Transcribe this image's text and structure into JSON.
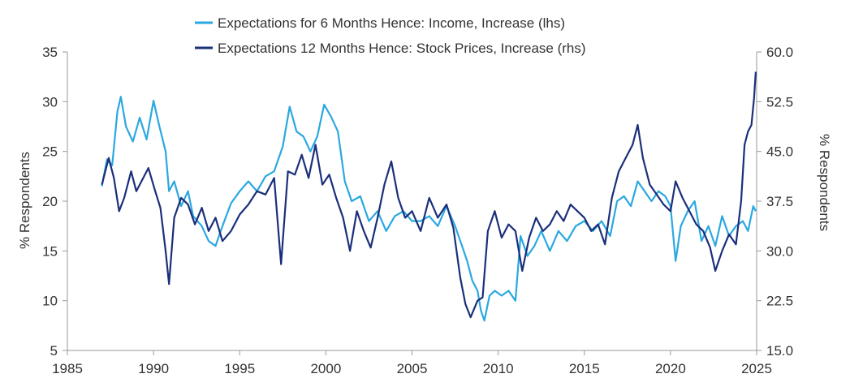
{
  "chart_data": {
    "type": "line",
    "x_axis": {
      "min": 1985,
      "max": 2025,
      "ticks": [
        1985,
        1990,
        1995,
        2000,
        2005,
        2010,
        2015,
        2020,
        2025
      ]
    },
    "y_left": {
      "label": "% Respondents",
      "min": 5,
      "max": 35,
      "ticks": [
        5,
        10,
        15,
        20,
        25,
        30,
        35
      ]
    },
    "y_right": {
      "label": "% Respondents",
      "min": 15.0,
      "max": 60.0,
      "ticks": [
        "15.0",
        "22.5",
        "30.0",
        "37.5",
        "45.0",
        "52.5",
        "60.0"
      ]
    },
    "legend": "top",
    "series": [
      {
        "name": "Expectations for 6 Months Hence: Income, Increase (lhs)",
        "axis": "left",
        "color": "#2aa8e0",
        "points": [
          [
            1987.0,
            21.5
          ],
          [
            1987.3,
            24.2
          ],
          [
            1987.6,
            23.6
          ],
          [
            1987.9,
            29.0
          ],
          [
            1988.1,
            30.5
          ],
          [
            1988.4,
            27.5
          ],
          [
            1988.8,
            26.0
          ],
          [
            1989.2,
            28.4
          ],
          [
            1989.6,
            26.2
          ],
          [
            1990.0,
            30.1
          ],
          [
            1990.3,
            27.8
          ],
          [
            1990.7,
            25.0
          ],
          [
            1990.9,
            21.0
          ],
          [
            1991.2,
            22.0
          ],
          [
            1991.6,
            19.5
          ],
          [
            1992.0,
            21.0
          ],
          [
            1992.3,
            18.5
          ],
          [
            1992.8,
            17.5
          ],
          [
            1993.2,
            16.0
          ],
          [
            1993.6,
            15.5
          ],
          [
            1994.0,
            17.5
          ],
          [
            1994.5,
            19.8
          ],
          [
            1995.0,
            21.0
          ],
          [
            1995.5,
            22.0
          ],
          [
            1996.0,
            21.0
          ],
          [
            1996.5,
            22.5
          ],
          [
            1997.0,
            23.0
          ],
          [
            1997.5,
            25.5
          ],
          [
            1997.9,
            29.5
          ],
          [
            1998.3,
            27.0
          ],
          [
            1998.7,
            26.5
          ],
          [
            1999.1,
            25.0
          ],
          [
            1999.5,
            26.5
          ],
          [
            1999.9,
            29.7
          ],
          [
            2000.3,
            28.5
          ],
          [
            2000.7,
            27.0
          ],
          [
            2001.1,
            22.0
          ],
          [
            2001.5,
            20.0
          ],
          [
            2002.0,
            20.5
          ],
          [
            2002.5,
            18.0
          ],
          [
            2003.0,
            19.0
          ],
          [
            2003.5,
            17.0
          ],
          [
            2004.0,
            18.5
          ],
          [
            2004.5,
            19.0
          ],
          [
            2005.0,
            18.0
          ],
          [
            2005.5,
            18.0
          ],
          [
            2006.0,
            18.5
          ],
          [
            2006.5,
            17.5
          ],
          [
            2007.0,
            19.5
          ],
          [
            2007.5,
            17.5
          ],
          [
            2007.9,
            15.5
          ],
          [
            2008.2,
            14.0
          ],
          [
            2008.5,
            12.0
          ],
          [
            2008.8,
            11.0
          ],
          [
            2009.0,
            9.0
          ],
          [
            2009.2,
            8.0
          ],
          [
            2009.5,
            10.5
          ],
          [
            2009.8,
            11.0
          ],
          [
            2010.2,
            10.5
          ],
          [
            2010.6,
            11.0
          ],
          [
            2011.0,
            10.0
          ],
          [
            2011.3,
            16.5
          ],
          [
            2011.7,
            14.5
          ],
          [
            2012.1,
            15.5
          ],
          [
            2012.5,
            17.0
          ],
          [
            2013.0,
            15.0
          ],
          [
            2013.5,
            17.0
          ],
          [
            2014.0,
            16.0
          ],
          [
            2014.5,
            17.5
          ],
          [
            2015.0,
            18.0
          ],
          [
            2015.5,
            17.0
          ],
          [
            2016.0,
            18.0
          ],
          [
            2016.5,
            16.5
          ],
          [
            2016.9,
            20.0
          ],
          [
            2017.3,
            20.5
          ],
          [
            2017.7,
            19.5
          ],
          [
            2018.1,
            22.0
          ],
          [
            2018.5,
            21.0
          ],
          [
            2018.9,
            20.0
          ],
          [
            2019.3,
            21.0
          ],
          [
            2019.7,
            20.5
          ],
          [
            2020.0,
            19.5
          ],
          [
            2020.3,
            14.0
          ],
          [
            2020.6,
            17.5
          ],
          [
            2021.0,
            19.0
          ],
          [
            2021.4,
            20.0
          ],
          [
            2021.8,
            16.0
          ],
          [
            2022.2,
            17.5
          ],
          [
            2022.6,
            15.5
          ],
          [
            2023.0,
            18.5
          ],
          [
            2023.4,
            16.5
          ],
          [
            2023.8,
            17.5
          ],
          [
            2024.2,
            18.0
          ],
          [
            2024.5,
            17.0
          ],
          [
            2024.8,
            19.5
          ],
          [
            2024.95,
            19.0
          ]
        ]
      },
      {
        "name": "Expectations 12 Months Hence: Stock Prices, Increase (rhs)",
        "axis": "right",
        "color": "#1b2f7a",
        "points": [
          [
            1987.0,
            40.0
          ],
          [
            1987.4,
            44.0
          ],
          [
            1987.7,
            41.0
          ],
          [
            1988.0,
            36.0
          ],
          [
            1988.3,
            38.0
          ],
          [
            1988.7,
            42.0
          ],
          [
            1989.0,
            39.0
          ],
          [
            1989.4,
            41.0
          ],
          [
            1989.7,
            42.5
          ],
          [
            1990.1,
            39.0
          ],
          [
            1990.4,
            36.5
          ],
          [
            1990.7,
            30.0
          ],
          [
            1990.9,
            25.0
          ],
          [
            1991.2,
            35.0
          ],
          [
            1991.6,
            38.0
          ],
          [
            1992.0,
            37.0
          ],
          [
            1992.4,
            34.0
          ],
          [
            1992.8,
            36.5
          ],
          [
            1993.2,
            33.0
          ],
          [
            1993.6,
            35.0
          ],
          [
            1994.0,
            31.5
          ],
          [
            1994.5,
            33.0
          ],
          [
            1995.0,
            35.5
          ],
          [
            1995.5,
            37.0
          ],
          [
            1996.0,
            39.0
          ],
          [
            1996.5,
            38.5
          ],
          [
            1997.0,
            41.0
          ],
          [
            1997.4,
            28.0
          ],
          [
            1997.8,
            42.0
          ],
          [
            1998.2,
            41.5
          ],
          [
            1998.6,
            44.5
          ],
          [
            1999.0,
            41.0
          ],
          [
            1999.4,
            46.0
          ],
          [
            1999.8,
            40.0
          ],
          [
            2000.2,
            41.5
          ],
          [
            2000.6,
            38.0
          ],
          [
            2001.0,
            35.0
          ],
          [
            2001.4,
            30.0
          ],
          [
            2001.8,
            36.0
          ],
          [
            2002.2,
            33.0
          ],
          [
            2002.6,
            30.5
          ],
          [
            2003.0,
            35.0
          ],
          [
            2003.4,
            40.0
          ],
          [
            2003.8,
            43.5
          ],
          [
            2004.2,
            38.0
          ],
          [
            2004.6,
            35.0
          ],
          [
            2005.0,
            36.0
          ],
          [
            2005.5,
            33.0
          ],
          [
            2006.0,
            38.0
          ],
          [
            2006.5,
            35.0
          ],
          [
            2007.0,
            37.0
          ],
          [
            2007.4,
            33.5
          ],
          [
            2007.8,
            26.0
          ],
          [
            2008.1,
            22.0
          ],
          [
            2008.4,
            20.0
          ],
          [
            2008.8,
            22.5
          ],
          [
            2009.1,
            23.0
          ],
          [
            2009.4,
            33.0
          ],
          [
            2009.8,
            36.0
          ],
          [
            2010.2,
            32.0
          ],
          [
            2010.6,
            34.0
          ],
          [
            2011.0,
            33.0
          ],
          [
            2011.4,
            27.0
          ],
          [
            2011.8,
            32.0
          ],
          [
            2012.2,
            35.0
          ],
          [
            2012.6,
            33.0
          ],
          [
            2013.0,
            34.0
          ],
          [
            2013.4,
            36.0
          ],
          [
            2013.8,
            34.5
          ],
          [
            2014.2,
            37.0
          ],
          [
            2014.6,
            36.0
          ],
          [
            2015.0,
            35.0
          ],
          [
            2015.4,
            33.0
          ],
          [
            2015.8,
            34.0
          ],
          [
            2016.2,
            31.0
          ],
          [
            2016.6,
            38.0
          ],
          [
            2017.0,
            42.0
          ],
          [
            2017.4,
            44.0
          ],
          [
            2017.8,
            46.0
          ],
          [
            2018.1,
            49.0
          ],
          [
            2018.4,
            44.0
          ],
          [
            2018.8,
            40.0
          ],
          [
            2019.2,
            38.5
          ],
          [
            2019.6,
            37.0
          ],
          [
            2020.0,
            36.0
          ],
          [
            2020.3,
            40.5
          ],
          [
            2020.7,
            38.0
          ],
          [
            2021.1,
            36.0
          ],
          [
            2021.5,
            34.0
          ],
          [
            2021.9,
            33.0
          ],
          [
            2022.3,
            30.5
          ],
          [
            2022.6,
            27.0
          ],
          [
            2023.0,
            30.0
          ],
          [
            2023.4,
            32.5
          ],
          [
            2023.8,
            31.0
          ],
          [
            2024.1,
            37.5
          ],
          [
            2024.3,
            46.0
          ],
          [
            2024.5,
            48.0
          ],
          [
            2024.7,
            49.0
          ],
          [
            2024.85,
            53.0
          ],
          [
            2024.95,
            57.0
          ]
        ]
      }
    ]
  }
}
